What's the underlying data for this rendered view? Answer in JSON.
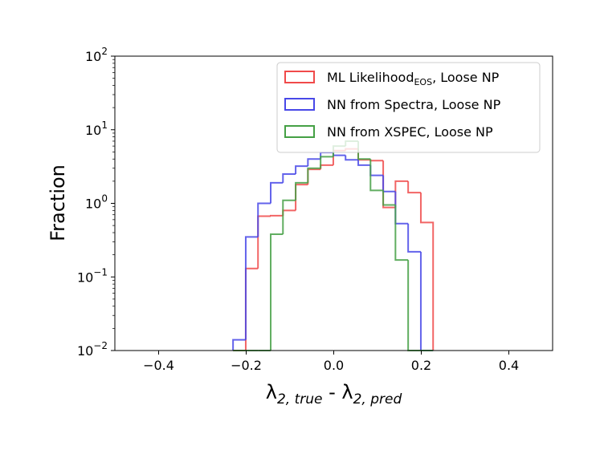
{
  "chart_data": {
    "type": "histogram",
    "ylabel": "Fraction",
    "xlabel": [
      {
        "text": "λ"
      },
      {
        "text": "2, true",
        "sub": true
      },
      {
        "text": " - "
      },
      {
        "text": "λ"
      },
      {
        "text": "2, pred",
        "sub": true
      }
    ],
    "bins": [
      -0.23,
      -0.201,
      -0.173,
      -0.144,
      -0.116,
      -0.087,
      -0.059,
      -0.03,
      -0.001,
      0.027,
      0.056,
      0.084,
      0.113,
      0.141,
      0.17,
      0.199,
      0.227
    ],
    "series": [
      {
        "name": "ML Likelihood",
        "subscript": "EOS",
        "suffix": ", Loose NP",
        "color": "#f04a4a",
        "values": [
          0,
          0.13,
          0.67,
          0.68,
          0.8,
          1.8,
          2.9,
          3.3,
          5.2,
          5.5,
          3.9,
          3.8,
          0.88,
          2.0,
          1.4,
          0.55
        ]
      },
      {
        "name": "NN from Spectra, Loose NP",
        "color": "#4848e8",
        "values": [
          0.014,
          0.35,
          1.0,
          1.9,
          2.5,
          3.2,
          4.0,
          4.9,
          4.5,
          3.9,
          3.3,
          2.4,
          1.45,
          0.53,
          0.22,
          0
        ]
      },
      {
        "name": "NN from XSPEC, Loose NP",
        "color": "#45a045",
        "values": [
          0,
          0,
          0,
          0.38,
          1.1,
          1.9,
          3.0,
          4.3,
          6.0,
          7.0,
          4.0,
          1.5,
          0.95,
          0.17,
          0,
          0
        ]
      }
    ],
    "xlim": [
      -0.5,
      0.5
    ],
    "xticks": [
      {
        "value": -0.4,
        "label": "−0.4"
      },
      {
        "value": -0.2,
        "label": "−0.2"
      },
      {
        "value": 0,
        "label": "0.0"
      },
      {
        "value": 0.2,
        "label": "0.2"
      },
      {
        "value": 0.4,
        "label": "0.4"
      }
    ],
    "ylim": [
      0.01,
      100
    ],
    "yscale": "log",
    "yticks": [
      {
        "value": 0.01,
        "label": "10^−2"
      },
      {
        "value": 0.1,
        "label": "10^−1"
      },
      {
        "value": 1,
        "label": "10^0"
      },
      {
        "value": 10,
        "label": "10^1"
      },
      {
        "value": 100,
        "label": "10^2"
      }
    ],
    "legend": "upper right"
  }
}
